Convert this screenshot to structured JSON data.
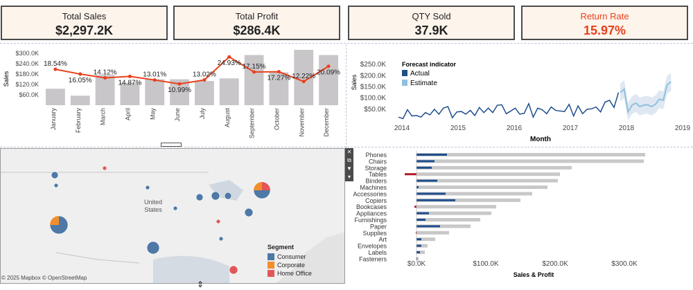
{
  "kpis": [
    {
      "title": "Total Sales",
      "value": "$2,297.2K",
      "color": "#111111"
    },
    {
      "title": "Total Profit",
      "value": "$286.4K",
      "color": "#111111"
    },
    {
      "title": "QTY Sold",
      "value": "37.9K",
      "color": "#111111"
    },
    {
      "title": "Return Rate",
      "value": "15.97%",
      "color": "#e8401c"
    }
  ],
  "chart_data": [
    {
      "type": "bar",
      "ylabel": "Sales",
      "yticks": [
        "$300.0K",
        "$240.0K",
        "$180.0K",
        "$120.0K",
        "$60.0K"
      ],
      "categories": [
        "January",
        "February",
        "March",
        "April",
        "May",
        "June",
        "July",
        "August",
        "September",
        "October",
        "November",
        "December"
      ],
      "series": [
        {
          "values": [
            95,
            55,
            175,
            130,
            150,
            150,
            140,
            155,
            290,
            190,
            320,
            290
          ],
          "color": "#c9c6c9"
        },
        {
          "values": [
            18.54,
            16.05,
            14.12,
            14.87,
            13.01,
            10.99,
            13.02,
            24.93,
            17.15,
            17.27,
            12.22,
            20.09
          ],
          "color": "#e8401c"
        }
      ],
      "line_labels": [
        "18.54%",
        "16.05%",
        "14.12%",
        "14.87%",
        "13.01%",
        "10.99%",
        "13.02%",
        "24.93%",
        "17.15%",
        "17.27%",
        "12.22%",
        "20.09%"
      ]
    },
    {
      "type": "line",
      "ylabel": "Sales",
      "xlabel": "Month",
      "yticks": [
        "$250.0K",
        "$200.0K",
        "$150.0K",
        "$100.0K",
        "$50.0K"
      ],
      "xticks": [
        "2014",
        "2015",
        "2016",
        "2017",
        "2018",
        "2019"
      ],
      "legend_title": "Forecast indicator",
      "series": [
        {
          "name": "Actual",
          "color": "#1f4e8c",
          "values": [
            15,
            8,
            48,
            20,
            22,
            15,
            35,
            25,
            50,
            28,
            55,
            62,
            12,
            38,
            40,
            28,
            45,
            22,
            58,
            35,
            55,
            35,
            68,
            70,
            30,
            42,
            55,
            28,
            32,
            75,
            15,
            55,
            48,
            30,
            60,
            45,
            42,
            40,
            72,
            20,
            65,
            30,
            50,
            52,
            60,
            38,
            82,
            90,
            58,
            125
          ]
        },
        {
          "name": "Estimate",
          "color": "#8fc0e0",
          "values": [
            125,
            140,
            38,
            68,
            78,
            62,
            68,
            70,
            62,
            72,
            95,
            90,
            160,
            172
          ]
        }
      ]
    },
    {
      "type": "bar",
      "xlabel": "Sales & Profit",
      "xticks": [
        "$0.0K",
        "$100.0K",
        "$200.0K",
        "$300.0K"
      ],
      "categories": [
        "Phones",
        "Chairs",
        "Storage",
        "Tables",
        "Binders",
        "Machines",
        "Accessories",
        "Copiers",
        "Bookcases",
        "Appliances",
        "Furnishings",
        "Paper",
        "Supplies",
        "Art",
        "Envelopes",
        "Labels",
        "Fasteners"
      ],
      "series": [
        {
          "name": "Sales",
          "color": "#c8c8c8",
          "values": [
            330,
            328,
            224,
            207,
            204,
            189,
            167,
            150,
            115,
            108,
            92,
            78,
            47,
            27,
            16,
            12,
            3
          ]
        },
        {
          "name": "Profit",
          "color": "#1f4e8c",
          "values": [
            44,
            26,
            22,
            -17,
            30,
            3,
            42,
            56,
            -3,
            18,
            13,
            34,
            -1,
            7,
            7,
            5,
            1
          ]
        }
      ]
    }
  ],
  "map": {
    "attribution": "© 2025 Mapbox © OpenStreetMap",
    "labels": [
      "United",
      "States"
    ],
    "legend_title": "Segment",
    "segments": [
      {
        "name": "Consumer",
        "color": "#4e79a7"
      },
      {
        "name": "Corporate",
        "color": "#f28e2b"
      },
      {
        "name": "Home Office",
        "color": "#e15759"
      }
    ]
  }
}
